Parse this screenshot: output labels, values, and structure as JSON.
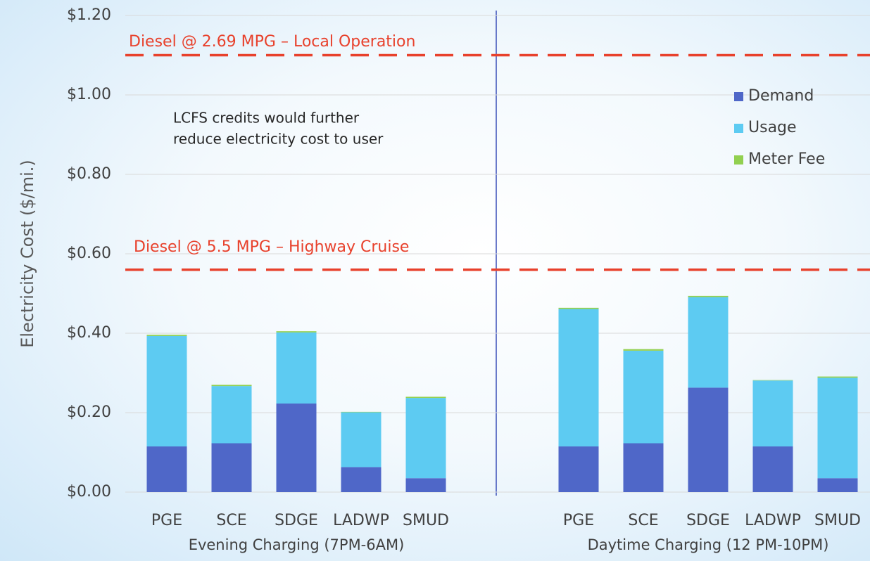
{
  "chart_data": {
    "type": "bar",
    "stacked": true,
    "ylabel": "Electricity Cost ($/mi.)",
    "groups": [
      {
        "label": "Evening Charging (7PM-6AM)",
        "categories": [
          "PGE",
          "SCE",
          "SDGE",
          "LADWP",
          "SMUD"
        ]
      },
      {
        "label": "Daytime Charging (12 PM-10PM)",
        "categories": [
          "PGE",
          "SCE",
          "SDGE",
          "LADWP",
          "SMUD"
        ]
      }
    ],
    "series": [
      {
        "name": "Demand",
        "color": "#4f67c8",
        "values": [
          0.115,
          0.123,
          0.223,
          0.063,
          0.035,
          0.115,
          0.123,
          0.263,
          0.115,
          0.035
        ]
      },
      {
        "name": "Usage",
        "color": "#5dcbf2",
        "values": [
          0.278,
          0.144,
          0.179,
          0.138,
          0.202,
          0.346,
          0.233,
          0.228,
          0.166,
          0.253
        ]
      },
      {
        "name": "Meter Fee",
        "color": "#92d050",
        "values": [
          0.003,
          0.003,
          0.003,
          0.001,
          0.003,
          0.003,
          0.004,
          0.003,
          0.001,
          0.003
        ]
      }
    ],
    "ylim": [
      0,
      1.2
    ],
    "yticks": [
      {
        "value": 0,
        "label": "$0.00"
      },
      {
        "value": 0.2,
        "label": "$0.20"
      },
      {
        "value": 0.4,
        "label": "$0.40"
      },
      {
        "value": 0.6,
        "label": "$0.60"
      },
      {
        "value": 0.8,
        "label": "$0.80"
      },
      {
        "value": 1.0,
        "label": "$1.00"
      },
      {
        "value": 1.2,
        "label": "$1.20"
      }
    ],
    "grid": true,
    "reference_lines": [
      {
        "label": "Diesel @ 2.69 MPG – Local Operation",
        "value": 1.1,
        "color": "#e8412c"
      },
      {
        "label": "Diesel @ 5.5 MPG – Highway Cruise",
        "value": 0.56,
        "color": "#e8412c"
      }
    ],
    "annotation": [
      "LCFS credits would further",
      "reduce electricity cost to user"
    ]
  }
}
